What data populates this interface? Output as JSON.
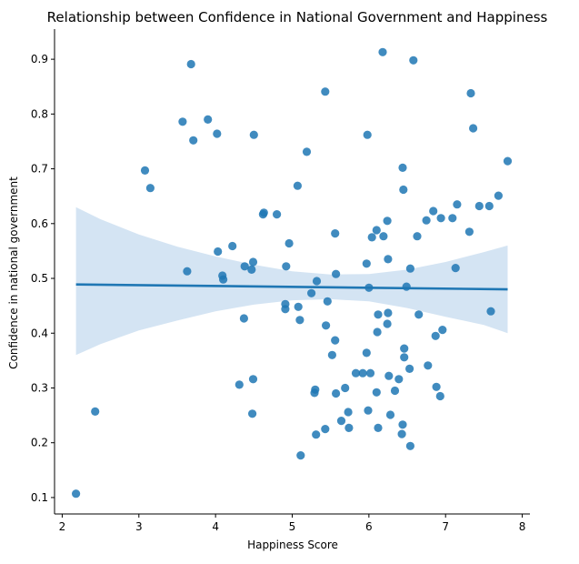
{
  "chart_data": {
    "type": "scatter",
    "title": "Relationship between Confidence in National Government and Happiness",
    "xlabel": "Happiness Score",
    "ylabel": "Confidence in national government",
    "xlim": [
      1.9,
      8.1
    ],
    "ylim": [
      0.07,
      0.955
    ],
    "xticks": [
      2,
      3,
      4,
      5,
      6,
      7,
      8
    ],
    "yticks": [
      0.1,
      0.2,
      0.3,
      0.4,
      0.5,
      0.6,
      0.7,
      0.8,
      0.9
    ],
    "grid": false,
    "colors": {
      "points": "#1f77b4",
      "regression_line": "#1f77b4",
      "confidence_band": "#c6dbef"
    },
    "regression": {
      "x": [
        2.18,
        7.81
      ],
      "y": [
        0.489,
        0.48
      ],
      "ci_upper": [
        [
          2.18,
          0.63
        ],
        [
          2.5,
          0.608
        ],
        [
          3.0,
          0.58
        ],
        [
          3.5,
          0.558
        ],
        [
          4.0,
          0.54
        ],
        [
          4.5,
          0.525
        ],
        [
          5.0,
          0.513
        ],
        [
          5.5,
          0.507
        ],
        [
          6.0,
          0.508
        ],
        [
          6.5,
          0.516
        ],
        [
          7.0,
          0.53
        ],
        [
          7.5,
          0.548
        ],
        [
          7.81,
          0.56
        ]
      ],
      "ci_lower": [
        [
          2.18,
          0.36
        ],
        [
          2.5,
          0.38
        ],
        [
          3.0,
          0.405
        ],
        [
          3.5,
          0.423
        ],
        [
          4.0,
          0.44
        ],
        [
          4.5,
          0.452
        ],
        [
          5.0,
          0.46
        ],
        [
          5.5,
          0.462
        ],
        [
          6.0,
          0.458
        ],
        [
          6.5,
          0.446
        ],
        [
          7.0,
          0.43
        ],
        [
          7.5,
          0.415
        ],
        [
          7.81,
          0.4
        ]
      ]
    },
    "points": [
      [
        2.18,
        0.107
      ],
      [
        2.43,
        0.257
      ],
      [
        3.08,
        0.697
      ],
      [
        3.15,
        0.665
      ],
      [
        3.57,
        0.786
      ],
      [
        3.63,
        0.513
      ],
      [
        3.68,
        0.891
      ],
      [
        3.71,
        0.752
      ],
      [
        3.9,
        0.79
      ],
      [
        4.02,
        0.764
      ],
      [
        4.03,
        0.549
      ],
      [
        4.09,
        0.505
      ],
      [
        4.1,
        0.498
      ],
      [
        4.22,
        0.559
      ],
      [
        4.31,
        0.306
      ],
      [
        4.37,
        0.427
      ],
      [
        4.38,
        0.522
      ],
      [
        4.47,
        0.516
      ],
      [
        4.48,
        0.253
      ],
      [
        4.49,
        0.316
      ],
      [
        4.49,
        0.53
      ],
      [
        4.5,
        0.762
      ],
      [
        4.62,
        0.617
      ],
      [
        4.63,
        0.62
      ],
      [
        4.8,
        0.617
      ],
      [
        4.91,
        0.453
      ],
      [
        4.91,
        0.444
      ],
      [
        4.92,
        0.522
      ],
      [
        4.96,
        0.564
      ],
      [
        5.07,
        0.669
      ],
      [
        5.08,
        0.448
      ],
      [
        5.1,
        0.424
      ],
      [
        5.11,
        0.177
      ],
      [
        5.19,
        0.731
      ],
      [
        5.25,
        0.473
      ],
      [
        5.29,
        0.291
      ],
      [
        5.3,
        0.297
      ],
      [
        5.31,
        0.215
      ],
      [
        5.32,
        0.495
      ],
      [
        5.43,
        0.841
      ],
      [
        5.43,
        0.225
      ],
      [
        5.44,
        0.414
      ],
      [
        5.46,
        0.458
      ],
      [
        5.52,
        0.36
      ],
      [
        5.56,
        0.387
      ],
      [
        5.56,
        0.582
      ],
      [
        5.57,
        0.508
      ],
      [
        5.57,
        0.29
      ],
      [
        5.64,
        0.24
      ],
      [
        5.69,
        0.3
      ],
      [
        5.73,
        0.256
      ],
      [
        5.74,
        0.227
      ],
      [
        5.83,
        0.327
      ],
      [
        5.92,
        0.327
      ],
      [
        5.97,
        0.527
      ],
      [
        5.97,
        0.364
      ],
      [
        5.98,
        0.762
      ],
      [
        5.99,
        0.259
      ],
      [
        6.0,
        0.483
      ],
      [
        6.02,
        0.327
      ],
      [
        6.04,
        0.575
      ],
      [
        6.1,
        0.588
      ],
      [
        6.1,
        0.292
      ],
      [
        6.11,
        0.402
      ],
      [
        6.12,
        0.227
      ],
      [
        6.12,
        0.434
      ],
      [
        6.18,
        0.913
      ],
      [
        6.19,
        0.577
      ],
      [
        6.24,
        0.605
      ],
      [
        6.24,
        0.417
      ],
      [
        6.25,
        0.437
      ],
      [
        6.25,
        0.535
      ],
      [
        6.26,
        0.322
      ],
      [
        6.28,
        0.251
      ],
      [
        6.34,
        0.295
      ],
      [
        6.39,
        0.316
      ],
      [
        6.43,
        0.216
      ],
      [
        6.44,
        0.233
      ],
      [
        6.44,
        0.702
      ],
      [
        6.45,
        0.662
      ],
      [
        6.46,
        0.372
      ],
      [
        6.46,
        0.356
      ],
      [
        6.49,
        0.485
      ],
      [
        6.53,
        0.335
      ],
      [
        6.54,
        0.518
      ],
      [
        6.54,
        0.194
      ],
      [
        6.58,
        0.898
      ],
      [
        6.63,
        0.577
      ],
      [
        6.65,
        0.434
      ],
      [
        6.75,
        0.606
      ],
      [
        6.77,
        0.341
      ],
      [
        6.84,
        0.623
      ],
      [
        6.87,
        0.395
      ],
      [
        6.88,
        0.302
      ],
      [
        6.93,
        0.285
      ],
      [
        6.94,
        0.61
      ],
      [
        6.96,
        0.406
      ],
      [
        7.09,
        0.61
      ],
      [
        7.13,
        0.519
      ],
      [
        7.15,
        0.635
      ],
      [
        7.31,
        0.585
      ],
      [
        7.33,
        0.838
      ],
      [
        7.36,
        0.774
      ],
      [
        7.44,
        0.632
      ],
      [
        7.57,
        0.632
      ],
      [
        7.59,
        0.44
      ],
      [
        7.69,
        0.651
      ],
      [
        7.81,
        0.714
      ]
    ]
  }
}
